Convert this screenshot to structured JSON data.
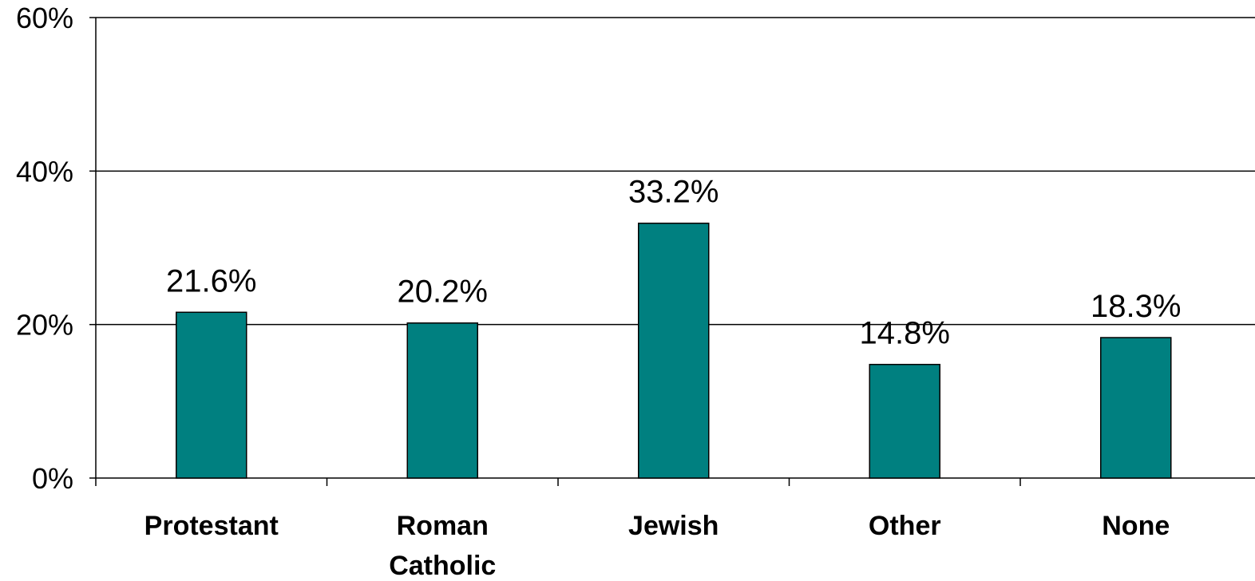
{
  "chart_data": {
    "type": "bar",
    "categories": [
      "Protestant",
      "Roman\nCatholic",
      "Jewish",
      "Other",
      "None"
    ],
    "values": [
      21.6,
      20.2,
      33.2,
      14.8,
      18.3
    ],
    "data_labels": [
      "21.6%",
      "20.2%",
      "33.2%",
      "14.8%",
      "18.3%"
    ],
    "title": "",
    "xlabel": "",
    "ylabel": "",
    "ylim": [
      0,
      60
    ],
    "yticks": [
      0,
      20,
      40,
      60
    ],
    "ytick_labels": [
      "0%",
      "20%",
      "40%",
      "60%"
    ],
    "grid": true,
    "legend": "none",
    "bar_color": "#008080"
  }
}
